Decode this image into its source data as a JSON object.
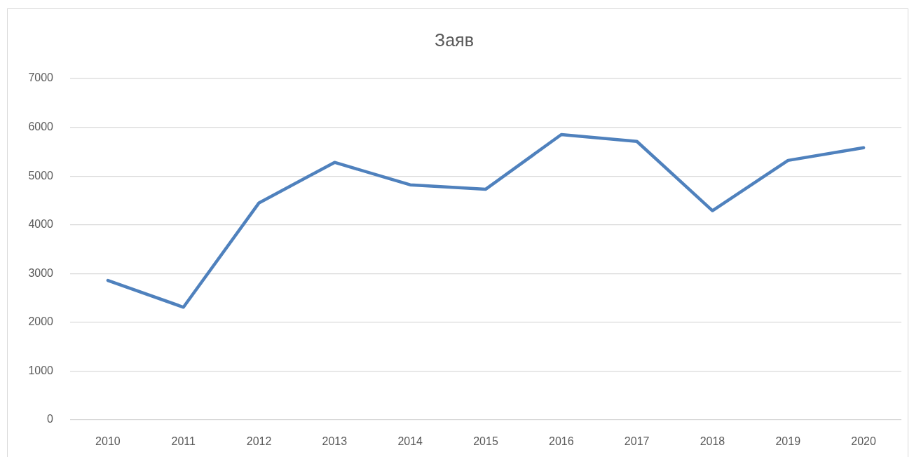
{
  "chart_data": {
    "type": "line",
    "title": "Заяв",
    "categories": [
      "2010",
      "2011",
      "2012",
      "2013",
      "2014",
      "2015",
      "2016",
      "2017",
      "2018",
      "2019",
      "2020"
    ],
    "values": [
      2860,
      2310,
      4450,
      5280,
      4820,
      4730,
      5850,
      5710,
      4290,
      5320,
      5580
    ],
    "color": "#4f81bd",
    "ylim": [
      0,
      7000
    ],
    "yticks": [
      0,
      1000,
      2000,
      3000,
      4000,
      5000,
      6000,
      7000
    ],
    "grid": "y",
    "marker": "none",
    "line_style": "solid"
  }
}
